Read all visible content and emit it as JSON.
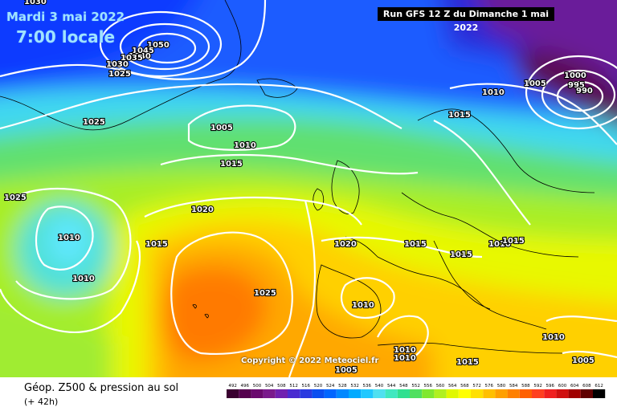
{
  "header": {
    "run_text": "Run GFS 12 Z du Dimanche 1 mai 2022",
    "date_text": "Mardi 3 mai 2022",
    "time_text": "7:00 locale"
  },
  "footer": {
    "product": "Géop. Z500 & pression au sol",
    "lead": "(+ 42h)",
    "copyright": "Copyright © 2022 Meteociel.fr"
  },
  "legend": {
    "values": [
      "492",
      "496",
      "500",
      "504",
      "508",
      "512",
      "516",
      "520",
      "524",
      "528",
      "532",
      "536",
      "540",
      "544",
      "548",
      "552",
      "556",
      "560",
      "564",
      "568",
      "572",
      "576",
      "580",
      "584",
      "588",
      "592",
      "596",
      "600",
      "604",
      "608",
      "612"
    ],
    "colors": [
      "#3a0030",
      "#55004e",
      "#6a0a6e",
      "#7a1a8c",
      "#7020b0",
      "#4a2bd0",
      "#2a3ae0",
      "#0a4ef0",
      "#0066ff",
      "#0088ff",
      "#00aaff",
      "#20c8ff",
      "#50e0f0",
      "#40e8c0",
      "#30e090",
      "#50e060",
      "#80e830",
      "#b0f020",
      "#e0f800",
      "#ffff00",
      "#ffe000",
      "#ffc000",
      "#ffa000",
      "#ff8000",
      "#ff6000",
      "#ff4020",
      "#f02020",
      "#d01010",
      "#a00000",
      "#600000",
      "#000000"
    ]
  },
  "isobars": [
    "1030",
    "1050",
    "1045",
    "1040",
    "1035",
    "1030",
    "1025",
    "1025",
    "1005",
    "1010",
    "1015",
    "1025",
    "1020",
    "1010",
    "1015",
    "1010",
    "1025",
    "1020",
    "1015",
    "1010",
    "1015",
    "1015",
    "1010",
    "1015",
    "1010",
    "1010",
    "1010",
    "1015",
    "1005",
    "1000",
    "995",
    "990",
    "1010",
    "1005",
    "1005"
  ]
}
